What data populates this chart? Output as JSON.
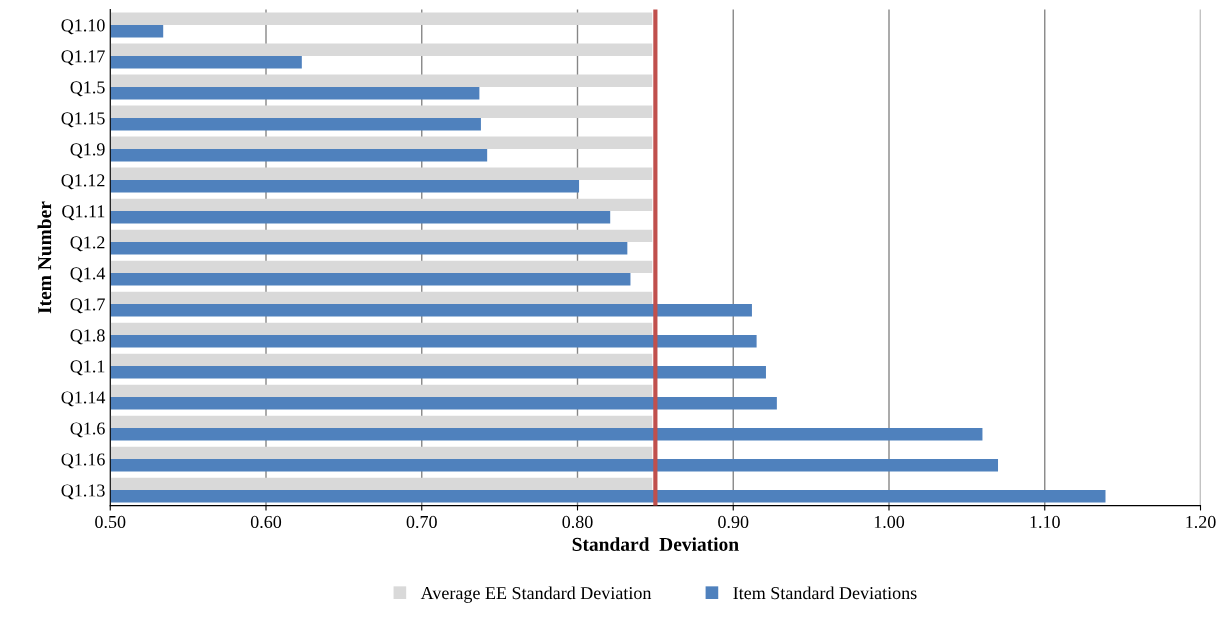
{
  "chart_data": {
    "type": "bar",
    "orientation": "horizontal",
    "xlabel": "Standard  Deviation",
    "ylabel": "Item Number",
    "categories": [
      "Q1.10",
      "Q1.17",
      "Q1.5",
      "Q1.15",
      "Q1.9",
      "Q1.12",
      "Q1.11",
      "Q1.2",
      "Q1.4",
      "Q1.7",
      "Q1.8",
      "Q1.1",
      "Q1.14",
      "Q1.6",
      "Q1.16",
      "Q1.13"
    ],
    "series": [
      {
        "name": "Average EE Standard Deviation",
        "color": "#d9d9d9",
        "values": [
          0.848,
          0.848,
          0.848,
          0.848,
          0.848,
          0.848,
          0.848,
          0.848,
          0.848,
          0.848,
          0.848,
          0.848,
          0.848,
          0.848,
          0.848,
          0.848
        ]
      },
      {
        "name": "Item Standard Deviations",
        "color": "#4f81bd",
        "values": [
          0.534,
          0.623,
          0.737,
          0.738,
          0.742,
          0.801,
          0.821,
          0.832,
          0.834,
          0.912,
          0.915,
          0.921,
          0.928,
          1.06,
          1.07,
          1.139
        ]
      }
    ],
    "xlim": [
      0.5,
      1.2
    ],
    "xticks": [
      {
        "value": 0.5,
        "label": "0.50"
      },
      {
        "value": 0.6,
        "label": "0.60"
      },
      {
        "value": 0.7,
        "label": "0.70"
      },
      {
        "value": 0.8,
        "label": "0.80"
      },
      {
        "value": 0.9,
        "label": "0.90"
      },
      {
        "value": 1.0,
        "label": "1.00"
      },
      {
        "value": 1.1,
        "label": "1.10"
      },
      {
        "value": 1.2,
        "label": "1.20"
      }
    ],
    "ref_lines": [
      {
        "axis": "x",
        "value": 0.85,
        "label": null,
        "color": "#c0504d"
      }
    ],
    "grid": "x",
    "legend": "bottom"
  }
}
